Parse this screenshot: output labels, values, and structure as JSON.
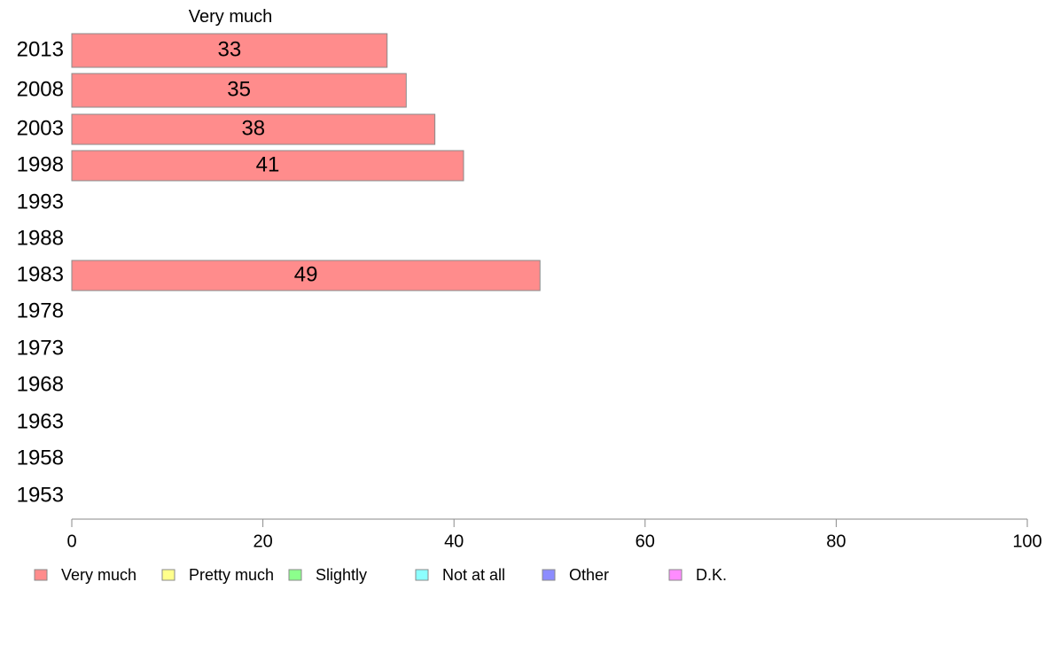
{
  "chart_data": {
    "type": "bar",
    "orientation": "horizontal",
    "title": "Very much",
    "categories": [
      "2013",
      "2008",
      "2003",
      "1998",
      "1993",
      "1988",
      "1983",
      "1978",
      "1973",
      "1968",
      "1963",
      "1958",
      "1953"
    ],
    "series": [
      {
        "name": "Very much",
        "color": "#ff8c8c",
        "values": [
          33,
          35,
          38,
          41,
          null,
          null,
          49,
          null,
          null,
          null,
          null,
          null,
          null
        ],
        "labels": [
          "33",
          "35",
          "38",
          "41",
          "",
          "",
          "49",
          "",
          "",
          "",
          "",
          "",
          ""
        ]
      }
    ],
    "xlim": [
      0,
      100
    ],
    "xticks": [
      0,
      20,
      40,
      60,
      80,
      100
    ],
    "xtick_labels": [
      "0",
      "20",
      "40",
      "60",
      "80",
      "100"
    ],
    "grid": false,
    "legend_position": "bottom",
    "legend": [
      {
        "label": "Very much",
        "color": "#ff8c8c"
      },
      {
        "label": "Pretty much",
        "color": "#ffff8c"
      },
      {
        "label": "Slightly",
        "color": "#8cff8c"
      },
      {
        "label": "Not at all",
        "color": "#8cffff"
      },
      {
        "label": "Other",
        "color": "#8c8cff"
      },
      {
        "label": "D.K.",
        "color": "#ff8cff"
      }
    ]
  }
}
